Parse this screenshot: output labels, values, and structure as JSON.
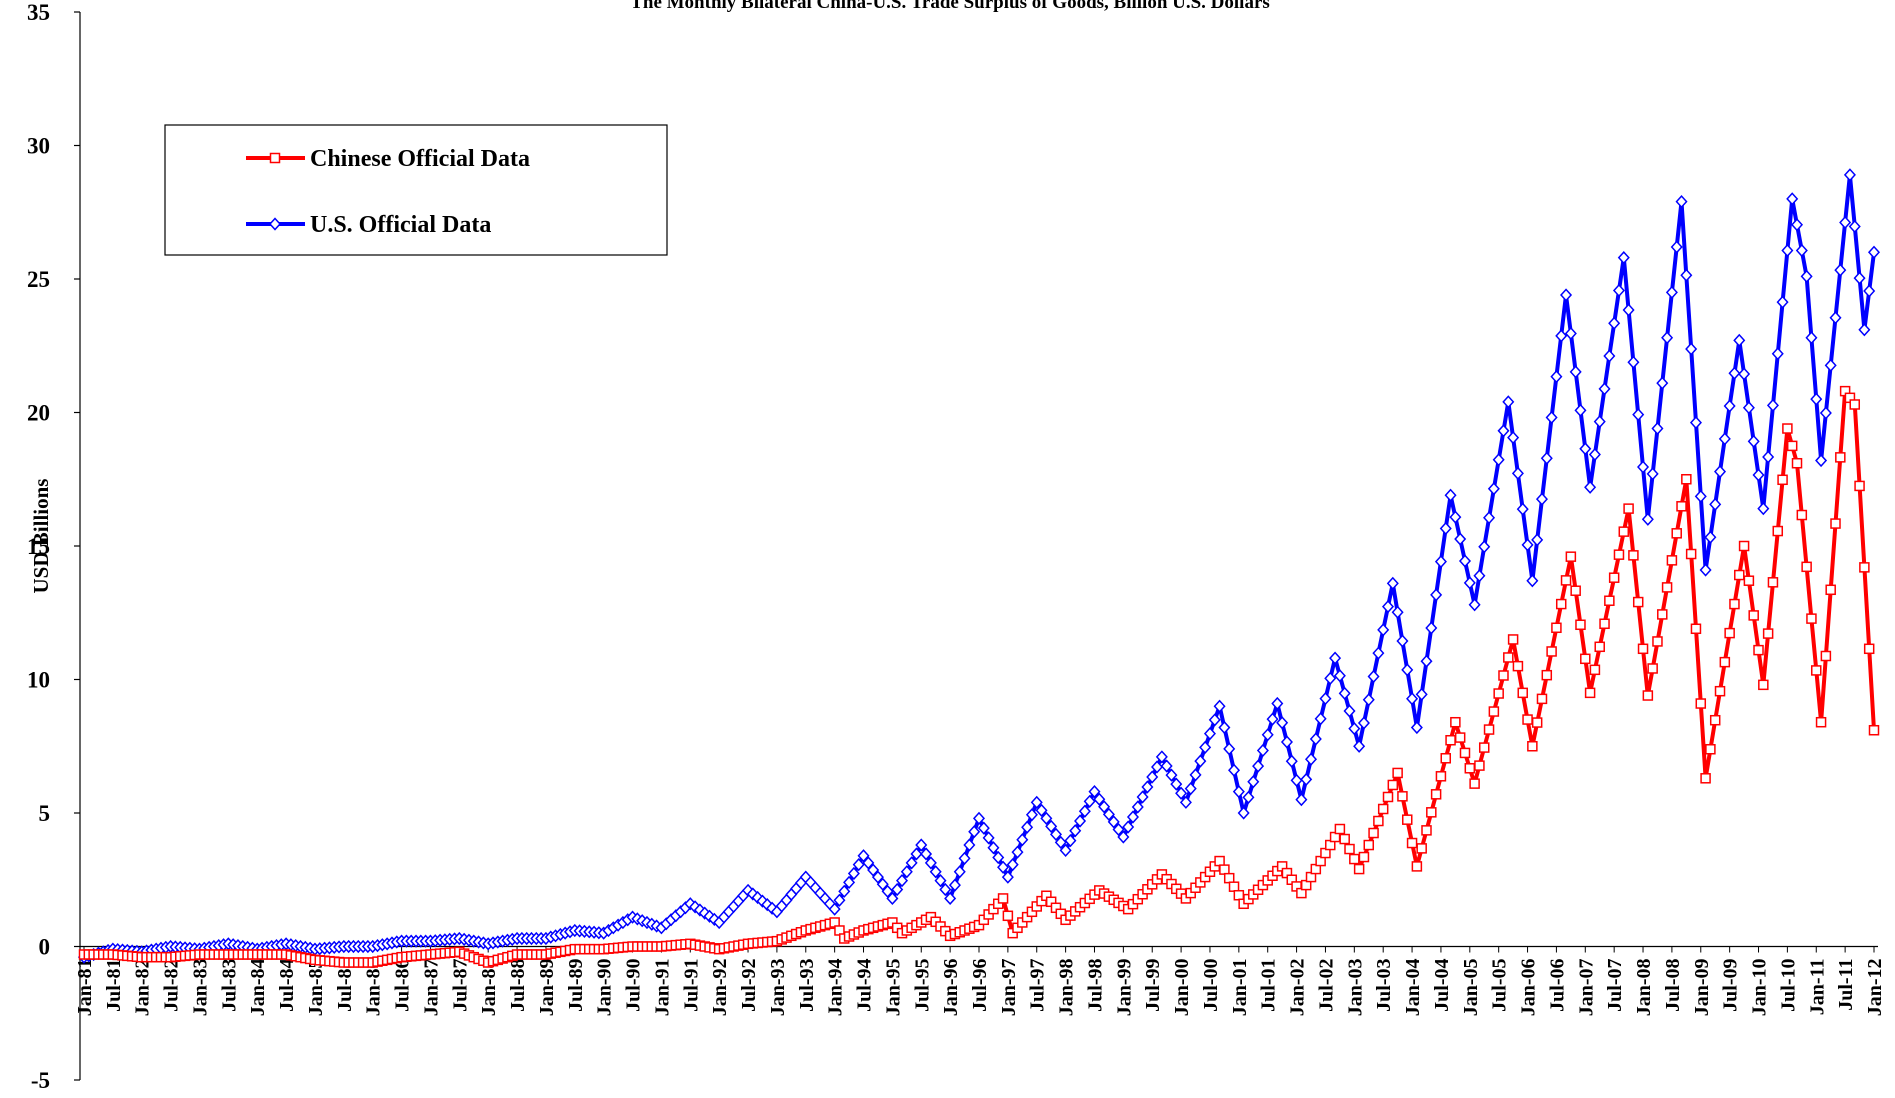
{
  "chart_data": {
    "type": "line",
    "title": "The Monthly Bilateral China-U.S. Trade Surplus of Goods, Billion U.S. Dollars",
    "ylabel": "USD Billions",
    "xlabel": "",
    "ylim": [
      -5,
      35
    ],
    "yticks": [
      "-5",
      "0",
      "5",
      "10",
      "15",
      "20",
      "25",
      "30",
      "35"
    ],
    "xlim": [
      "1981-01",
      "2012-01"
    ],
    "x_tick_labels": [
      "Jan-81",
      "Jul-81",
      "Jan-82",
      "Jul-82",
      "Jan-83",
      "Jul-83",
      "Jan-84",
      "Jul-84",
      "Jan-85",
      "Jul-85",
      "Jan-86",
      "Jul-86",
      "Jan-87",
      "Jul-87",
      "Jan-88",
      "Jul-88",
      "Jan-89",
      "Jul-89",
      "Jan-90",
      "Jul-90",
      "Jan-91",
      "Jul-91",
      "Jan-92",
      "Jul-92",
      "Jan-93",
      "Jul-93",
      "Jan-94",
      "Jul-94",
      "Jan-95",
      "Jul-95",
      "Jan-96",
      "Jul-96",
      "Jan-97",
      "Jul-97",
      "Jan-98",
      "Jul-98",
      "Jan-99",
      "Jul-99",
      "Jan-00",
      "Jul-00",
      "Jan-01",
      "Jul-01",
      "Jan-02",
      "Jul-02",
      "Jan-03",
      "Jul-03",
      "Jan-04",
      "Jul-04",
      "Jan-05",
      "Jul-05",
      "Jan-06",
      "Jul-06",
      "Jan-07",
      "Jul-07",
      "Jan-08",
      "Jul-08",
      "Jan-09",
      "Jul-09",
      "Jan-10",
      "Jul-10",
      "Jan-11",
      "Jul-11",
      "Jan-12"
    ],
    "grid": false,
    "legend_position": "top-left",
    "series": [
      {
        "name": "Chinese Official Data",
        "color": "#ff0000",
        "marker": "square",
        "keypoints": [
          [
            "1981-01",
            -0.3
          ],
          [
            "1981-07",
            -0.3
          ],
          [
            "1982-01",
            -0.4
          ],
          [
            "1982-07",
            -0.4
          ],
          [
            "1983-01",
            -0.3
          ],
          [
            "1983-07",
            -0.3
          ],
          [
            "1984-01",
            -0.3
          ],
          [
            "1984-07",
            -0.3
          ],
          [
            "1985-01",
            -0.5
          ],
          [
            "1985-07",
            -0.6
          ],
          [
            "1986-01",
            -0.6
          ],
          [
            "1986-07",
            -0.4
          ],
          [
            "1987-01",
            -0.3
          ],
          [
            "1987-07",
            -0.2
          ],
          [
            "1988-01",
            -0.6
          ],
          [
            "1988-07",
            -0.3
          ],
          [
            "1989-01",
            -0.3
          ],
          [
            "1989-07",
            -0.1
          ],
          [
            "1990-01",
            -0.1
          ],
          [
            "1990-07",
            0.0
          ],
          [
            "1991-01",
            0.0
          ],
          [
            "1991-07",
            0.1
          ],
          [
            "1992-01",
            -0.1
          ],
          [
            "1992-07",
            0.1
          ],
          [
            "1993-01",
            0.2
          ],
          [
            "1993-07",
            0.6
          ],
          [
            "1994-01",
            0.9
          ],
          [
            "1994-03",
            0.3
          ],
          [
            "1994-07",
            0.6
          ],
          [
            "1995-01",
            0.9
          ],
          [
            "1995-03",
            0.5
          ],
          [
            "1995-09",
            1.1
          ],
          [
            "1996-01",
            0.4
          ],
          [
            "1996-07",
            0.8
          ],
          [
            "1996-12",
            1.8
          ],
          [
            "1997-02",
            0.5
          ],
          [
            "1997-09",
            1.9
          ],
          [
            "1998-01",
            1.0
          ],
          [
            "1998-08",
            2.1
          ],
          [
            "1999-02",
            1.4
          ],
          [
            "1999-09",
            2.7
          ],
          [
            "2000-02",
            1.8
          ],
          [
            "2000-09",
            3.2
          ],
          [
            "2001-02",
            1.6
          ],
          [
            "2001-10",
            3.0
          ],
          [
            "2002-02",
            2.0
          ],
          [
            "2002-10",
            4.4
          ],
          [
            "2003-02",
            2.9
          ],
          [
            "2003-10",
            6.5
          ],
          [
            "2004-02",
            3.0
          ],
          [
            "2004-10",
            8.4
          ],
          [
            "2005-02",
            6.1
          ],
          [
            "2005-10",
            11.5
          ],
          [
            "2006-02",
            7.5
          ],
          [
            "2006-10",
            14.6
          ],
          [
            "2007-02",
            9.5
          ],
          [
            "2007-10",
            16.4
          ],
          [
            "2008-02",
            9.4
          ],
          [
            "2008-10",
            17.5
          ],
          [
            "2009-02",
            6.3
          ],
          [
            "2009-10",
            15.0
          ],
          [
            "2010-02",
            9.8
          ],
          [
            "2010-07",
            19.4
          ],
          [
            "2010-09",
            18.1
          ],
          [
            "2011-02",
            8.4
          ],
          [
            "2011-07",
            20.8
          ],
          [
            "2011-09",
            20.3
          ],
          [
            "2012-01",
            8.1
          ]
        ]
      },
      {
        "name": "U.S. Official Data",
        "color": "#0000ff",
        "marker": "diamond",
        "keypoints": [
          [
            "1981-01",
            -0.4
          ],
          [
            "1981-07",
            -0.1
          ],
          [
            "1982-01",
            -0.2
          ],
          [
            "1982-07",
            0.0
          ],
          [
            "1983-01",
            -0.1
          ],
          [
            "1983-07",
            0.1
          ],
          [
            "1984-01",
            -0.1
          ],
          [
            "1984-07",
            0.1
          ],
          [
            "1985-01",
            -0.1
          ],
          [
            "1985-07",
            0.0
          ],
          [
            "1986-01",
            0.0
          ],
          [
            "1986-07",
            0.2
          ],
          [
            "1987-01",
            0.2
          ],
          [
            "1987-07",
            0.3
          ],
          [
            "1988-01",
            0.1
          ],
          [
            "1988-07",
            0.3
          ],
          [
            "1989-01",
            0.3
          ],
          [
            "1989-07",
            0.6
          ],
          [
            "1990-01",
            0.5
          ],
          [
            "1990-07",
            1.1
          ],
          [
            "1991-01",
            0.7
          ],
          [
            "1991-07",
            1.6
          ],
          [
            "1992-01",
            0.9
          ],
          [
            "1992-07",
            2.1
          ],
          [
            "1993-01",
            1.3
          ],
          [
            "1993-07",
            2.6
          ],
          [
            "1994-01",
            1.4
          ],
          [
            "1994-07",
            3.4
          ],
          [
            "1995-01",
            1.8
          ],
          [
            "1995-07",
            3.8
          ],
          [
            "1996-01",
            1.8
          ],
          [
            "1996-07",
            4.8
          ],
          [
            "1997-01",
            2.6
          ],
          [
            "1997-07",
            5.4
          ],
          [
            "1998-01",
            3.6
          ],
          [
            "1998-07",
            5.8
          ],
          [
            "1999-01",
            4.1
          ],
          [
            "1999-09",
            7.1
          ],
          [
            "2000-02",
            5.4
          ],
          [
            "2000-09",
            9.0
          ],
          [
            "2001-02",
            5.0
          ],
          [
            "2001-09",
            9.1
          ],
          [
            "2002-02",
            5.5
          ],
          [
            "2002-09",
            10.8
          ],
          [
            "2003-02",
            7.5
          ],
          [
            "2003-09",
            13.6
          ],
          [
            "2004-02",
            8.2
          ],
          [
            "2004-09",
            16.9
          ],
          [
            "2005-02",
            12.8
          ],
          [
            "2005-09",
            20.4
          ],
          [
            "2006-02",
            13.7
          ],
          [
            "2006-09",
            24.4
          ],
          [
            "2007-02",
            17.2
          ],
          [
            "2007-09",
            25.8
          ],
          [
            "2008-02",
            16.0
          ],
          [
            "2008-09",
            27.9
          ],
          [
            "2009-02",
            14.1
          ],
          [
            "2009-09",
            22.7
          ],
          [
            "2010-02",
            16.4
          ],
          [
            "2010-08",
            28.0
          ],
          [
            "2010-11",
            25.1
          ],
          [
            "2011-02",
            18.2
          ],
          [
            "2011-08",
            28.9
          ],
          [
            "2011-11",
            23.1
          ],
          [
            "2012-01",
            26.0
          ]
        ]
      }
    ]
  }
}
